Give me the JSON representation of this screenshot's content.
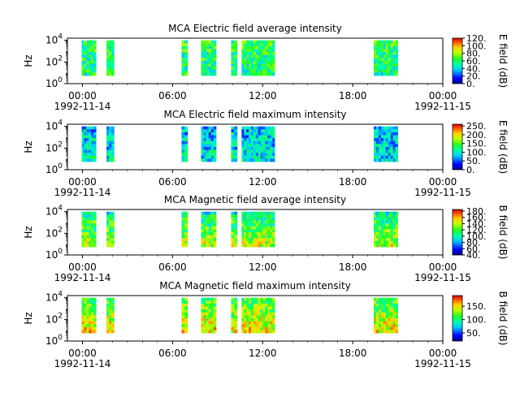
{
  "chart_data": [
    {
      "type": "heatmap",
      "title": "MCA  Electric field average intensity",
      "ylabel": "Hz",
      "yscale": "log",
      "ylim_exp": [
        0,
        4.2
      ],
      "ytick_exps": [
        0,
        2,
        4
      ],
      "xlim_hours": [
        0,
        25
      ],
      "xtick_labels": [
        "00:00",
        "06:00",
        "12:00",
        "18:00",
        "00:00"
      ],
      "xtick_hours": [
        1,
        7,
        13,
        19,
        25
      ],
      "date_labels": {
        "start": "1992-11-14",
        "end": "1992-11-15"
      },
      "colorbar": {
        "label": "E field (dB)",
        "range": [
          0,
          120
        ],
        "ticks": [
          0,
          20,
          40,
          60,
          80,
          100,
          120
        ],
        "tick_labels": [
          "0.",
          "20.",
          "40.",
          "60.",
          "80.",
          "100.",
          "120."
        ]
      },
      "segments_hours": [
        [
          0.95,
          1.9
        ],
        [
          2.6,
          3.1
        ],
        [
          7.6,
          8.0
        ],
        [
          8.9,
          9.9
        ],
        [
          10.9,
          11.3
        ],
        [
          11.6,
          13.8
        ],
        [
          20.4,
          22.0
        ],
        [
          26.4,
          28.3
        ]
      ],
      "low_freq_level": 55,
      "high_freq_level": 62,
      "grid": false
    },
    {
      "type": "heatmap",
      "title": "MCA  Electric field maximum intensity",
      "ylabel": "Hz",
      "yscale": "log",
      "ylim_exp": [
        0,
        4.2
      ],
      "ytick_exps": [
        0,
        2,
        4
      ],
      "xlim_hours": [
        0,
        25
      ],
      "xtick_labels": [
        "00:00",
        "06:00",
        "12:00",
        "18:00",
        "00:00"
      ],
      "xtick_hours": [
        1,
        7,
        13,
        19,
        25
      ],
      "date_labels": {
        "start": "1992-11-14",
        "end": "1992-11-15"
      },
      "colorbar": {
        "label": "E field (dB)",
        "range": [
          0,
          260
        ],
        "ticks": [
          0,
          50,
          100,
          150,
          200,
          250
        ],
        "tick_labels": [
          "0.",
          "50.",
          "100.",
          "150.",
          "200.",
          "250."
        ]
      },
      "segments_hours": [
        [
          0.95,
          1.9
        ],
        [
          2.6,
          3.1
        ],
        [
          7.6,
          8.0
        ],
        [
          8.9,
          9.9
        ],
        [
          10.9,
          11.3
        ],
        [
          11.6,
          13.8
        ],
        [
          20.4,
          22.0
        ],
        [
          26.4,
          28.3
        ]
      ],
      "low_freq_level": 95,
      "high_freq_level": 80,
      "grid": false
    },
    {
      "type": "heatmap",
      "title": "MCA  Magnetic field average intensity",
      "ylabel": "Hz",
      "yscale": "log",
      "ylim_exp": [
        0,
        4.2
      ],
      "ytick_exps": [
        0,
        2,
        4
      ],
      "xlim_hours": [
        0,
        25
      ],
      "xtick_labels": [
        "00:00",
        "06:00",
        "12:00",
        "18:00",
        "00:00"
      ],
      "xtick_hours": [
        1,
        7,
        13,
        19,
        25
      ],
      "date_labels": {
        "start": "1992-11-14",
        "end": "1992-11-15"
      },
      "colorbar": {
        "label": "B field (dB)",
        "range": [
          40,
          185
        ],
        "ticks": [
          40,
          60,
          80,
          100,
          120,
          140,
          160,
          180
        ],
        "tick_labels": [
          "40.",
          "60.",
          "80.",
          "100.",
          "120.",
          "140.",
          "160.",
          "180."
        ]
      },
      "segments_hours": [
        [
          0.95,
          1.9
        ],
        [
          2.6,
          3.1
        ],
        [
          7.6,
          8.0
        ],
        [
          8.9,
          9.9
        ],
        [
          10.9,
          11.3
        ],
        [
          11.6,
          13.8
        ],
        [
          20.4,
          22.0
        ],
        [
          26.4,
          28.3
        ]
      ],
      "low_freq_level": 140,
      "high_freq_level": 100,
      "grid": false
    },
    {
      "type": "heatmap",
      "title": "MCA  Magnetic field maximum intensity",
      "ylabel": "Hz",
      "yscale": "log",
      "ylim_exp": [
        0,
        4.2
      ],
      "ytick_exps": [
        0,
        2,
        4
      ],
      "xlim_hours": [
        0,
        25
      ],
      "xtick_labels": [
        "00:00",
        "06:00",
        "12:00",
        "18:00",
        "00:00"
      ],
      "xtick_hours": [
        1,
        7,
        13,
        19,
        25
      ],
      "date_labels": {
        "start": "1992-11-14",
        "end": "1992-11-15"
      },
      "colorbar": {
        "label": "B field (dB)",
        "range": [
          20,
          190
        ],
        "ticks": [
          50,
          100,
          150
        ],
        "tick_labels": [
          "50.",
          "100.",
          "150."
        ]
      },
      "segments_hours": [
        [
          0.95,
          1.9
        ],
        [
          2.6,
          3.1
        ],
        [
          7.6,
          8.0
        ],
        [
          8.9,
          9.9
        ],
        [
          10.9,
          11.3
        ],
        [
          11.6,
          13.8
        ],
        [
          20.4,
          22.0
        ],
        [
          26.4,
          28.3
        ]
      ],
      "low_freq_level": 150,
      "high_freq_level": 110,
      "grid": false
    }
  ]
}
